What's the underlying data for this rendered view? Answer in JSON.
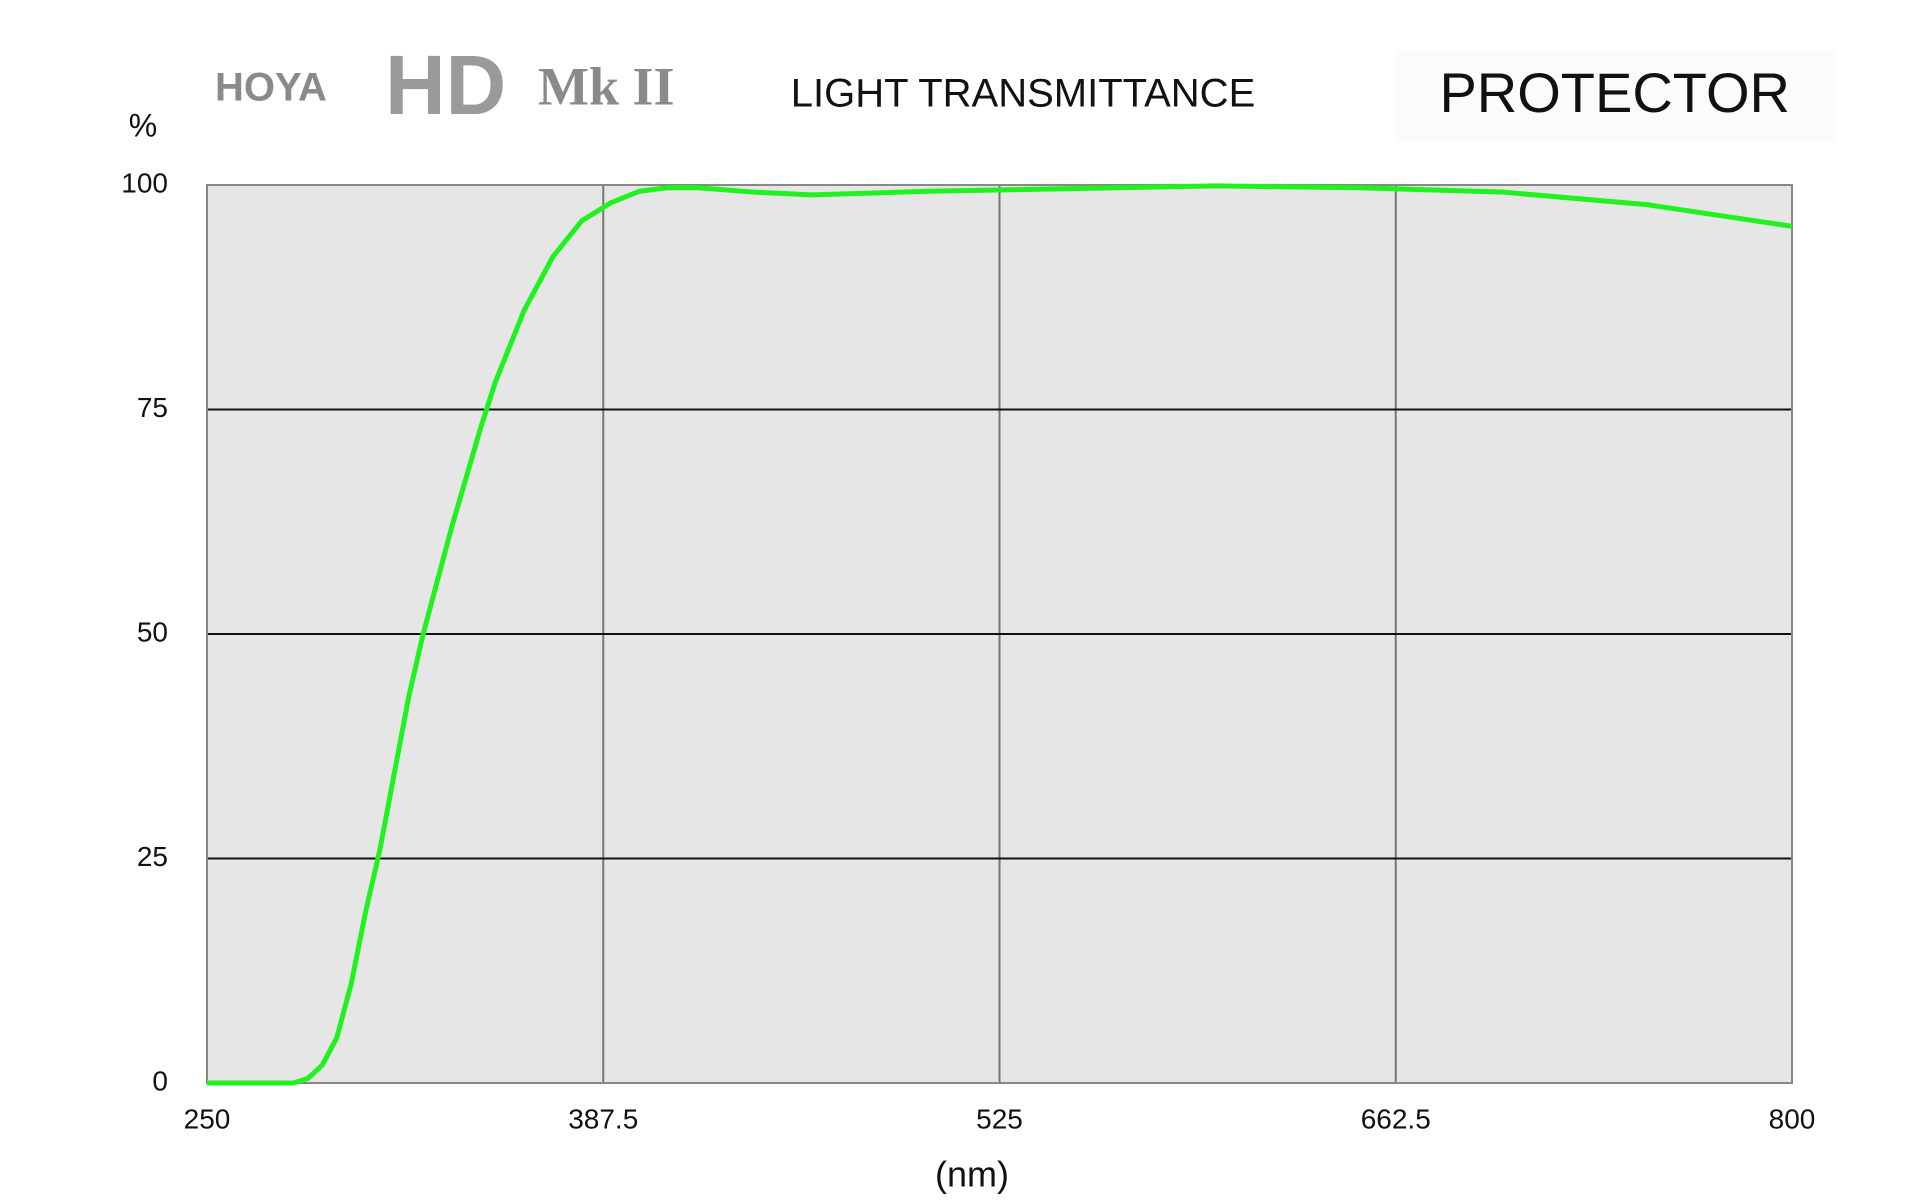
{
  "chart_data": {
    "type": "line",
    "brand": [
      "HOYA",
      "HD",
      "Mk II"
    ],
    "title": "LIGHT TRANSMITTANCE",
    "subtitle": "PROTECTOR",
    "y_label": "%",
    "x_label": "(nm)",
    "x": [
      250,
      265,
      280,
      285,
      290,
      295,
      300,
      305,
      310,
      320,
      325,
      335,
      345,
      350,
      360,
      370,
      380,
      390,
      400,
      410,
      420,
      440,
      460,
      500,
      550,
      600,
      650,
      700,
      750,
      800
    ],
    "series": [
      {
        "name": "Transmittance",
        "color": "#1ff21f",
        "values": [
          0,
          0,
          0,
          0.5,
          2,
          5,
          11,
          19,
          26,
          43,
          50,
          62,
          73,
          78,
          86,
          92,
          96,
          98,
          99.3,
          99.7,
          99.7,
          99.2,
          98.9,
          99.3,
          99.6,
          99.9,
          99.7,
          99.2,
          97.8,
          95.4
        ]
      }
    ],
    "xlim": [
      250,
      800
    ],
    "xticks": [
      250,
      387.5,
      525,
      662.5,
      800
    ],
    "ylim": [
      0,
      100
    ],
    "yticks": [
      0,
      25,
      50,
      75,
      100
    ],
    "grid": true
  }
}
